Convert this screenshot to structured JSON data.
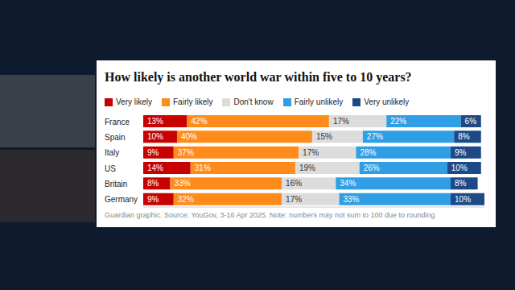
{
  "chart_data": {
    "type": "bar",
    "title": "How likely is another world war within five to 10 years?",
    "note": "Guardian graphic. Source: YouGov, 3-16 Apr 2025. Note: numbers may not sum to 100 due to rounding",
    "orientation": "horizontal",
    "stacked": true,
    "data_labels": true,
    "tick_labels": "y",
    "legend": "top-left",
    "xlim": [
      0,
      101
    ],
    "categories": [
      "France",
      "Spain",
      "Italy",
      "US",
      "Britain",
      "Germany"
    ],
    "series": [
      {
        "name": "Very likely",
        "color": "#c70000",
        "values": [
          13,
          10,
          9,
          14,
          8,
          9
        ],
        "value_labels": [
          "13%",
          "10%",
          "9%",
          "14%",
          "8%",
          "9%"
        ]
      },
      {
        "name": "Fairly likely",
        "color": "#ff8c1a",
        "values": [
          42,
          40,
          37,
          31,
          33,
          32
        ],
        "value_labels": [
          "42%",
          "40%",
          "37%",
          "31%",
          "33%",
          "32%"
        ]
      },
      {
        "name": "Don't know",
        "color": "#dcdcdc",
        "values": [
          17,
          15,
          17,
          19,
          16,
          17
        ],
        "value_labels": [
          "17%",
          "15%",
          "17%",
          "19%",
          "16%",
          "17%"
        ]
      },
      {
        "name": "Fairly unlikely",
        "color": "#2f9ee4",
        "values": [
          22,
          27,
          28,
          26,
          34,
          33
        ],
        "value_labels": [
          "22%",
          "27%",
          "28%",
          "26%",
          "34%",
          "33%"
        ]
      },
      {
        "name": "Very unlikely",
        "color": "#1d4a87",
        "values": [
          6,
          8,
          9,
          10,
          8,
          10
        ],
        "value_labels": [
          "6%",
          "8%",
          "9%",
          "10%",
          "8%",
          "10%"
        ]
      }
    ]
  }
}
